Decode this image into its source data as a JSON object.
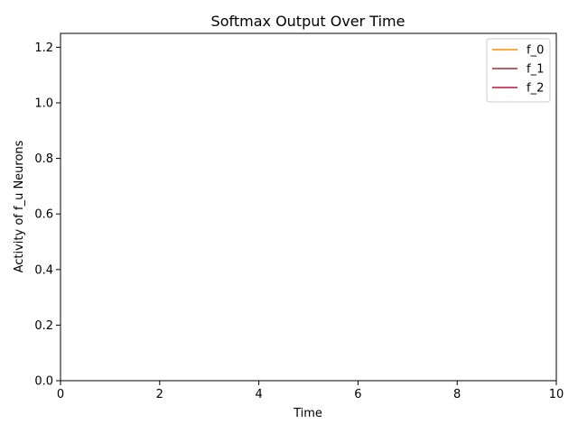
{
  "chart_data": {
    "type": "line",
    "title": "Softmax Output Over Time",
    "xlabel": "Time",
    "ylabel": "Activity of f_u Neurons",
    "xlim": [
      0,
      10
    ],
    "ylim": [
      0,
      1.25
    ],
    "xticks": [
      0,
      2,
      4,
      6,
      8,
      10
    ],
    "yticks": [
      0.0,
      0.2,
      0.4,
      0.6,
      0.8,
      1.0,
      1.2
    ],
    "xtick_labels": [
      "0",
      "2",
      "4",
      "6",
      "8",
      "10"
    ],
    "ytick_labels": [
      "0.0",
      "0.2",
      "0.4",
      "0.6",
      "0.8",
      "1.0",
      "1.2"
    ],
    "grid": false,
    "legend_position": "top-right",
    "series": [
      {
        "name": "f_0",
        "color": "#ff8c00",
        "x": [],
        "y": []
      },
      {
        "name": "f_1",
        "color": "#a52a2a",
        "x": [],
        "y": []
      },
      {
        "name": "f_2",
        "color": "#c0143c",
        "x": [],
        "y": []
      }
    ]
  }
}
